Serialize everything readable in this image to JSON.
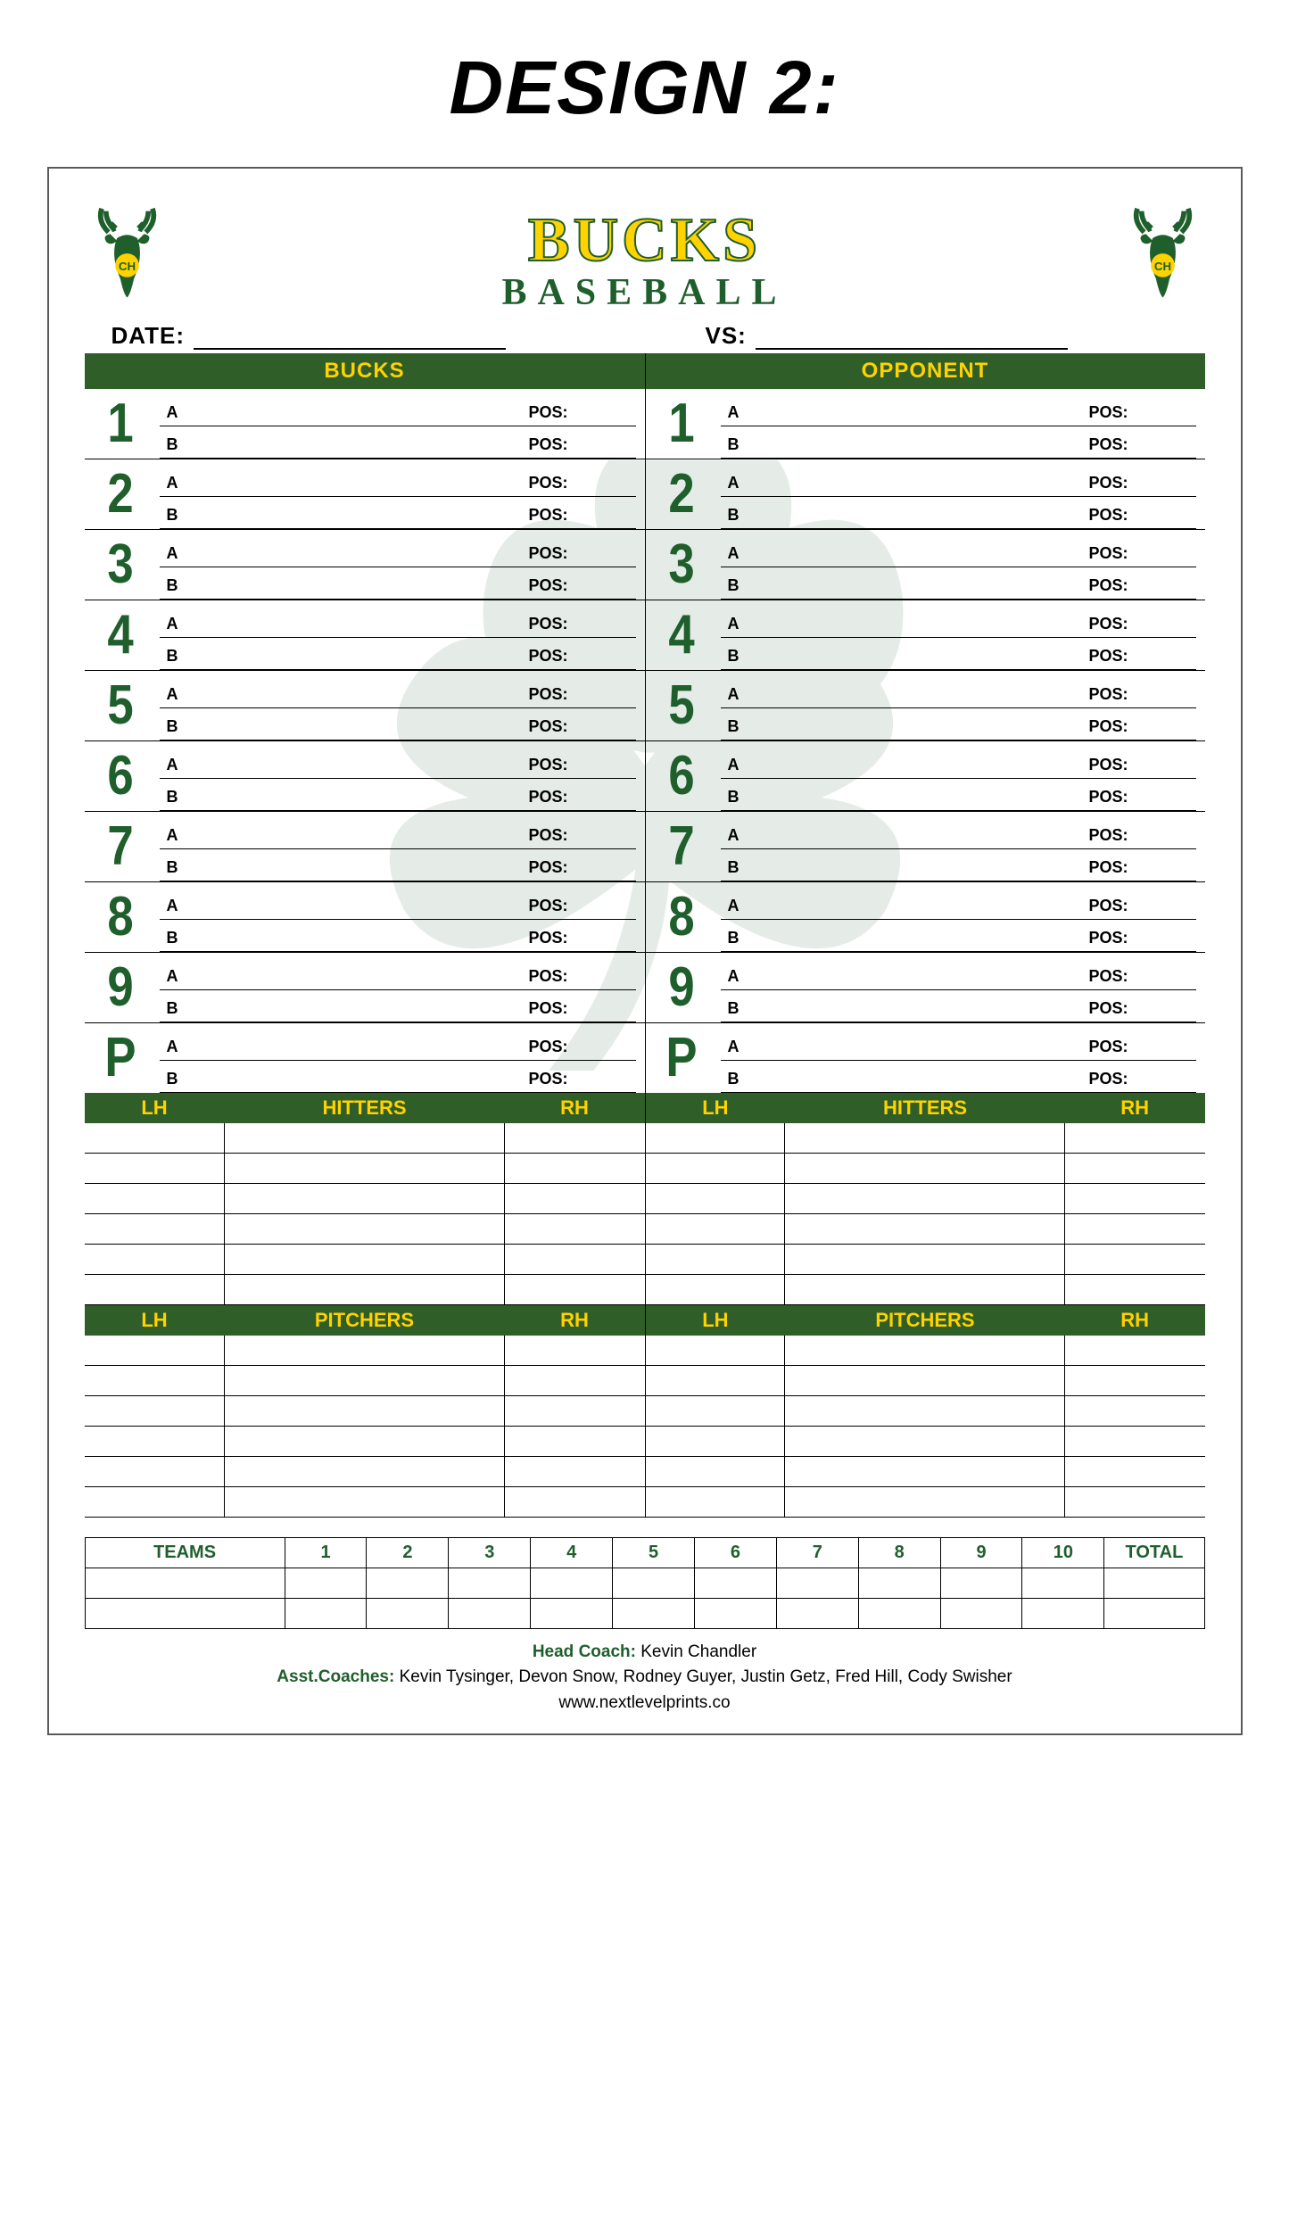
{
  "page_heading": "DESIGN 2:",
  "colors": {
    "brand_green": "#2f5e29",
    "brand_dark_green": "#1f5f2c",
    "brand_yellow": "#ffd200",
    "border": "#000000",
    "card_border": "#5a5a5a",
    "background": "#ffffff",
    "clover_opacity": 0.11
  },
  "header": {
    "title_top": "BUCKS",
    "title_bottom": "BASEBALL",
    "logo_badge_text": "CH"
  },
  "meta": {
    "date_label": "DATE:",
    "vs_label": "VS:"
  },
  "lineup": {
    "left_header": "BUCKS",
    "right_header": "OPPONENT",
    "slots": [
      "1",
      "2",
      "3",
      "4",
      "5",
      "6",
      "7",
      "8",
      "9",
      "P"
    ],
    "row_a": "A",
    "row_b": "B",
    "pos_label": "POS:"
  },
  "hitters": {
    "lh": "LH",
    "mid": "HITTERS",
    "rh": "RH",
    "rows": 6
  },
  "pitchers": {
    "lh": "LH",
    "mid": "PITCHERS",
    "rh": "RH",
    "rows": 6
  },
  "score": {
    "teams_label": "TEAMS",
    "innings": [
      "1",
      "2",
      "3",
      "4",
      "5",
      "6",
      "7",
      "8",
      "9",
      "10"
    ],
    "total_label": "TOTAL",
    "body_rows": 2
  },
  "footer": {
    "head_coach_label": "Head Coach:",
    "head_coach": " Kevin Chandler",
    "asst_label": "Asst.Coaches:",
    "asst_coaches": " Kevin Tysinger, Devon Snow, Rodney Guyer, Justin Getz, Fred Hill, Cody Swisher",
    "url": "www.nextlevelprints.co"
  }
}
